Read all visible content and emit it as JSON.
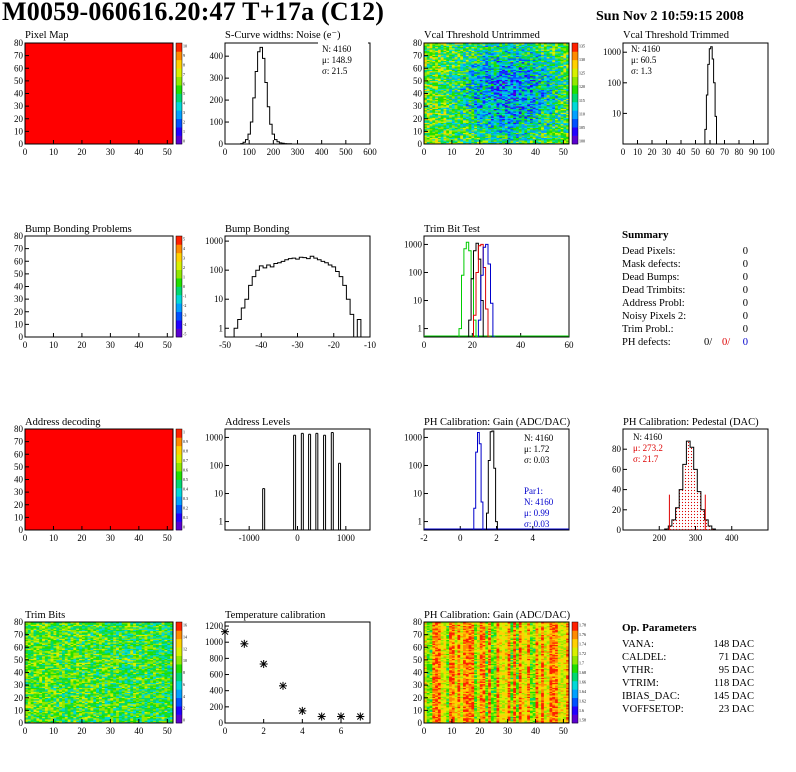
{
  "header": {
    "title": "M0059-060616.20:47 T+17a (C12)",
    "date": "Sun Nov  2 10:59:15 2008"
  },
  "colors": {
    "map_red": "#ff0000",
    "line": "#000000",
    "green": "#00cc00",
    "red": "#dd0000",
    "blue": "#0000cc",
    "palette": [
      "#5a00d0",
      "#2200ff",
      "#0050ff",
      "#00a0ff",
      "#00d8d8",
      "#00d870",
      "#20e000",
      "#90e800",
      "#d8f000",
      "#ffd000",
      "#ff8a00",
      "#ff2000"
    ]
  },
  "panels": {
    "pixel_map": {
      "title": "Pixel Map"
    },
    "scurve": {
      "title": "S-Curve widths: Noise (e⁻)",
      "stats": [
        "N: 4160",
        "μ: 148.9",
        "σ: 21.5"
      ]
    },
    "vcal_untrimmed": {
      "title": "Vcal Threshold Untrimmed"
    },
    "vcal_trimmed": {
      "title": "Vcal Threshold Trimmed",
      "stats": [
        "N: 4160",
        "μ: 60.5",
        "σ:  1.3"
      ]
    },
    "bump_problems": {
      "title": "Bump Bonding Problems"
    },
    "bump_bonding": {
      "title": "Bump Bonding"
    },
    "trim_bit_test": {
      "title": "Trim Bit Test"
    },
    "address_decoding": {
      "title": "Address decoding"
    },
    "address_levels": {
      "title": "Address Levels"
    },
    "ph_gain": {
      "title": "PH Calibration: Gain (ADC/DAC)",
      "stats": [
        "N: 4160",
        "μ: 1.72",
        "σ: 0.03"
      ],
      "stats2": [
        "Par1:",
        "N: 4160",
        "μ: 0.99",
        "σ: 0.03"
      ]
    },
    "ph_pedestal": {
      "title": "PH Calibration: Pedestal (DAC)",
      "stats": [
        "N: 4160",
        "μ: 273.2",
        "σ: 21.7"
      ]
    },
    "trim_bits": {
      "title": "Trim Bits"
    },
    "temperature": {
      "title": "Temperature calibration"
    },
    "ph_gain_map": {
      "title": "PH Calibration: Gain (ADC/DAC)"
    }
  },
  "summary": {
    "title": "Summary",
    "rows": [
      {
        "label": "Dead Pixels:",
        "value": "0"
      },
      {
        "label": "Mask defects:",
        "value": "0"
      },
      {
        "label": "Dead Bumps:",
        "value": "0"
      },
      {
        "label": "Dead Trimbits:",
        "value": "0"
      },
      {
        "label": "Address Probl:",
        "value": "0"
      },
      {
        "label": "Noisy Pixels 2:",
        "value": "0"
      },
      {
        "label": "Trim Probl.:",
        "value": "0"
      }
    ],
    "ph_label": "PH defects:",
    "ph_values": [
      "0/",
      "0/",
      "0"
    ]
  },
  "params": {
    "title": "Op. Parameters",
    "rows": [
      {
        "label": "VANA:",
        "value": "148 DAC"
      },
      {
        "label": "CALDEL:",
        "value": "71 DAC"
      },
      {
        "label": "VTHR:",
        "value": "95 DAC"
      },
      {
        "label": "VTRIM:",
        "value": "118 DAC"
      },
      {
        "label": "IBIAS_DAC:",
        "value": "145 DAC"
      },
      {
        "label": "VOFFSETOP:",
        "value": "23 DAC"
      }
    ]
  },
  "chart_data": [
    {
      "id": "pixel_map",
      "type": "heatmap",
      "title": "Pixel Map",
      "xlim": [
        0,
        52
      ],
      "ylim": [
        0,
        80
      ],
      "xticks": [
        0,
        10,
        20,
        30,
        40,
        50
      ],
      "yticks": [
        0,
        10,
        20,
        30,
        40,
        50,
        60,
        70,
        80
      ],
      "fill": "uniform-max",
      "z_ticks": [
        "10",
        "9",
        "8",
        "7",
        "6",
        "5",
        "4",
        "3",
        "2",
        "1",
        "0"
      ]
    },
    {
      "id": "scurve",
      "type": "line",
      "step": true,
      "title": "S-Curve widths: Noise (e⁻)",
      "xlim": [
        0,
        600
      ],
      "ylim": [
        0,
        460
      ],
      "xticks": [
        0,
        100,
        200,
        300,
        400,
        500,
        600
      ],
      "yticks": [
        0,
        100,
        200,
        300,
        400
      ],
      "x": [
        60,
        70,
        80,
        90,
        100,
        110,
        120,
        130,
        140,
        150,
        160,
        170,
        180,
        190,
        200,
        210,
        220,
        230,
        240,
        250,
        260,
        270,
        280,
        290,
        300
      ],
      "y": [
        0,
        2,
        8,
        20,
        45,
        100,
        210,
        330,
        420,
        440,
        390,
        280,
        170,
        90,
        45,
        20,
        10,
        5,
        3,
        2,
        1,
        1,
        0,
        0,
        0
      ]
    },
    {
      "id": "vcal_untrimmed",
      "type": "heatmap",
      "title": "Vcal Threshold Untrimmed",
      "xlim": [
        0,
        52
      ],
      "ylim": [
        0,
        80
      ],
      "xticks": [
        0,
        10,
        20,
        30,
        40,
        50
      ],
      "yticks": [
        0,
        10,
        20,
        30,
        40,
        50,
        60,
        70,
        80
      ],
      "fill": "noise-center-low",
      "z_ticks": [
        "135",
        "130",
        "125",
        "120",
        "115",
        "110",
        "105",
        "100"
      ]
    },
    {
      "id": "vcal_trimmed",
      "type": "line",
      "step": true,
      "log_y": true,
      "title": "Vcal Threshold Trimmed",
      "xlim": [
        0,
        100
      ],
      "ylim": [
        1,
        2000
      ],
      "xticks": [
        0,
        10,
        20,
        30,
        40,
        50,
        60,
        70,
        80,
        90,
        100
      ],
      "yticks": [
        10,
        100,
        1000
      ],
      "x": [
        56,
        57,
        58,
        59,
        60,
        61,
        62,
        63,
        64,
        65
      ],
      "y": [
        1,
        3,
        40,
        400,
        1300,
        1500,
        600,
        100,
        8,
        1
      ]
    },
    {
      "id": "bump_problems",
      "type": "heatmap",
      "title": "Bump Bonding Problems",
      "xlim": [
        0,
        52
      ],
      "ylim": [
        0,
        80
      ],
      "xticks": [
        0,
        10,
        20,
        30,
        40,
        50
      ],
      "yticks": [
        0,
        10,
        20,
        30,
        40,
        50,
        60,
        70,
        80
      ],
      "fill": "empty",
      "z_ticks": [
        "5",
        "4",
        "3",
        "2",
        "1",
        "0",
        "-1",
        "-2",
        "-3",
        "-4",
        "-5"
      ]
    },
    {
      "id": "bump_bonding",
      "type": "line",
      "step": true,
      "log_y": true,
      "title": "Bump Bonding",
      "xlim": [
        -50,
        -10
      ],
      "ylim": [
        0.5,
        1500
      ],
      "xticks": [
        -50,
        -40,
        -30,
        -20,
        -10
      ],
      "yticks": [
        1,
        10,
        100,
        1000
      ],
      "x": [
        -48,
        -47,
        -46,
        -45,
        -44,
        -43,
        -42,
        -41,
        -40,
        -39,
        -38,
        -37,
        -36,
        -35,
        -34,
        -33,
        -32,
        -31,
        -30,
        -29,
        -28,
        -27,
        -26,
        -25,
        -24,
        -23,
        -22,
        -21,
        -20,
        -19,
        -18,
        -17,
        -16,
        -15,
        -14,
        -13,
        -12
      ],
      "y": [
        0,
        1,
        2,
        5,
        10,
        30,
        60,
        100,
        140,
        120,
        150,
        130,
        170,
        180,
        200,
        230,
        250,
        260,
        240,
        280,
        270,
        250,
        300,
        260,
        230,
        200,
        180,
        150,
        130,
        90,
        60,
        30,
        10,
        3,
        0,
        2,
        0
      ]
    },
    {
      "id": "trim_bit_test",
      "type": "line",
      "step": true,
      "log_y": true,
      "title": "Trim Bit Test",
      "xlim": [
        0,
        60
      ],
      "ylim": [
        0.5,
        2000
      ],
      "xticks": [
        0,
        20,
        40,
        60
      ],
      "yticks": [
        1,
        10,
        100,
        1000
      ],
      "series": [
        {
          "color": "green",
          "x": [
            15,
            16,
            17,
            18,
            19,
            20,
            21,
            22
          ],
          "y": [
            1,
            80,
            700,
            1200,
            600,
            60,
            2,
            0
          ]
        },
        {
          "color": "black",
          "x": [
            19,
            20,
            21,
            22,
            23,
            24,
            25
          ],
          "y": [
            2,
            60,
            600,
            1100,
            300,
            10,
            0
          ]
        },
        {
          "color": "red",
          "x": [
            21,
            22,
            23,
            24,
            25,
            26,
            27
          ],
          "y": [
            3,
            100,
            900,
            1000,
            150,
            5,
            0
          ]
        },
        {
          "color": "blue",
          "x": [
            23,
            24,
            25,
            26,
            27,
            28,
            29
          ],
          "y": [
            2,
            80,
            800,
            1000,
            200,
            8,
            0
          ]
        }
      ]
    },
    {
      "id": "address_decoding",
      "type": "heatmap",
      "title": "Address decoding",
      "xlim": [
        0,
        52
      ],
      "ylim": [
        0,
        80
      ],
      "xticks": [
        0,
        10,
        20,
        30,
        40,
        50
      ],
      "yticks": [
        0,
        10,
        20,
        30,
        40,
        50,
        60,
        70,
        80
      ],
      "fill": "uniform-max",
      "z_ticks": [
        "1",
        "0.9",
        "0.8",
        "0.7",
        "0.6",
        "0.5",
        "0.4",
        "0.3",
        "0.2",
        "0.1",
        "0"
      ]
    },
    {
      "id": "address_levels",
      "type": "bar",
      "log_y": true,
      "title": "Address Levels",
      "xlim": [
        -1500,
        1500
      ],
      "ylim": [
        0.5,
        2000
      ],
      "xticks": [
        -1000,
        0,
        1000
      ],
      "yticks": [
        1,
        10,
        100,
        1000
      ],
      "x": [
        -700,
        -60,
        100,
        250,
        400,
        560,
        720,
        870
      ],
      "y": [
        15,
        1200,
        1400,
        1300,
        1400,
        1200,
        1500,
        120
      ]
    },
    {
      "id": "ph_gain",
      "type": "line",
      "step": true,
      "log_y": true,
      "title": "PH Calibration: Gain (ADC/DAC)",
      "xlim": [
        -2,
        6
      ],
      "ylim": [
        0.5,
        2000
      ],
      "xticks": [
        -2,
        0,
        2,
        4
      ],
      "yticks": [
        1,
        10,
        100,
        1000
      ],
      "series": [
        {
          "color": "black",
          "x": [
            1.5,
            1.6,
            1.7,
            1.8,
            1.9,
            2.0
          ],
          "y": [
            2,
            150,
            1600,
            1700,
            80,
            1
          ]
        },
        {
          "color": "blue",
          "x": [
            0.8,
            0.9,
            1.0,
            1.1,
            1.2
          ],
          "y": [
            3,
            300,
            1500,
            600,
            5
          ]
        }
      ]
    },
    {
      "id": "ph_pedestal",
      "type": "line",
      "step": true,
      "title": "PH Calibration: Pedestal (DAC)",
      "xlim": [
        100,
        500
      ],
      "ylim": [
        0,
        100
      ],
      "xticks": [
        200,
        300,
        400
      ],
      "yticks": [
        0,
        20,
        40,
        60,
        80
      ],
      "x": [
        220,
        230,
        240,
        250,
        260,
        270,
        280,
        290,
        300,
        310,
        320,
        330,
        340,
        350
      ],
      "y": [
        1,
        4,
        10,
        22,
        40,
        65,
        88,
        82,
        60,
        38,
        20,
        10,
        4,
        1
      ],
      "fit_markers": [
        228,
        327
      ]
    },
    {
      "id": "trim_bits",
      "type": "heatmap",
      "title": "Trim Bits",
      "xlim": [
        0,
        52
      ],
      "ylim": [
        0,
        80
      ],
      "xticks": [
        0,
        10,
        20,
        30,
        40,
        50
      ],
      "yticks": [
        0,
        10,
        20,
        30,
        40,
        50,
        60,
        70,
        80
      ],
      "fill": "noise-mid",
      "z_ticks": [
        "16",
        "14",
        "12",
        "10",
        "8",
        "6",
        "4",
        "2",
        "0"
      ]
    },
    {
      "id": "temperature",
      "type": "scatter",
      "title": "Temperature calibration",
      "xlim": [
        0,
        7.5
      ],
      "ylim": [
        0,
        1250
      ],
      "xticks": [
        0,
        2,
        4,
        6
      ],
      "yticks": [
        0,
        200,
        400,
        600,
        800,
        1000,
        1200
      ],
      "x": [
        0,
        1,
        2,
        3,
        4,
        5,
        6,
        7
      ],
      "y": [
        1130,
        980,
        730,
        460,
        150,
        80,
        80,
        80
      ]
    },
    {
      "id": "ph_gain_map",
      "type": "heatmap",
      "title": "PH Calibration: Gain (ADC/DAC)",
      "xlim": [
        0,
        52
      ],
      "ylim": [
        0,
        80
      ],
      "xticks": [
        0,
        10,
        20,
        30,
        40,
        50
      ],
      "yticks": [
        0,
        10,
        20,
        30,
        40,
        50,
        60,
        70,
        80
      ],
      "fill": "columns",
      "z_ticks": [
        "1.78",
        "1.76",
        "1.74",
        "1.72",
        "1.7",
        "1.68",
        "1.66",
        "1.64",
        "1.62",
        "1.6",
        "1.58"
      ]
    }
  ]
}
